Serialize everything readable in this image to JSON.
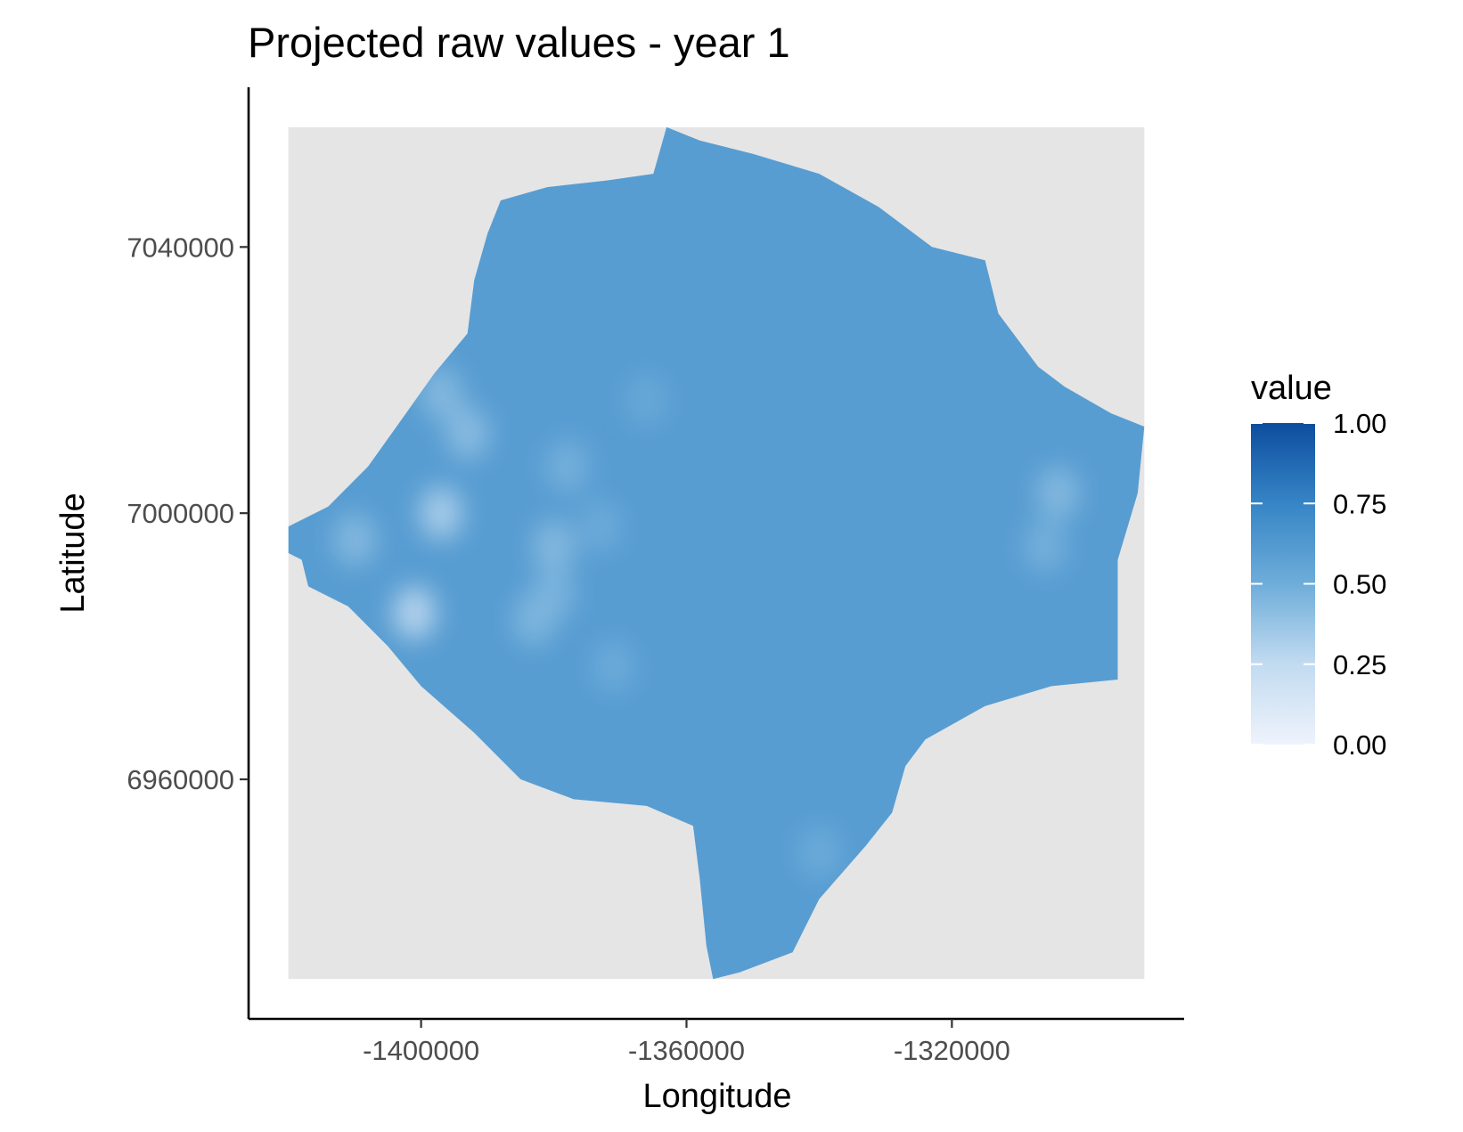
{
  "chart_data": {
    "type": "heatmap",
    "title": "Projected raw values - year 1",
    "xlabel": "Longitude",
    "ylabel": "Latitude",
    "x_ticks": [
      -1400000,
      -1360000,
      -1320000
    ],
    "x_tick_labels": [
      "-1400000",
      "-1360000",
      "-1320000"
    ],
    "y_ticks": [
      6960000,
      7000000,
      7040000
    ],
    "y_tick_labels": [
      "6960000",
      "7000000",
      "7040000"
    ],
    "xlim": [
      -1426000,
      -1285000
    ],
    "ylim": [
      6924000,
      7064000
    ],
    "raster_extent": {
      "x": [
        -1420000,
        -1291000
      ],
      "y": [
        6930000,
        7058000
      ]
    },
    "background_value": "NA",
    "background_color": "#e5e5e5",
    "base_value": 0.6,
    "region_outline": [
      [
        -1363000,
        7058000
      ],
      [
        -1358000,
        7056000
      ],
      [
        -1350000,
        7054000
      ],
      [
        -1340000,
        7051000
      ],
      [
        -1331000,
        7046000
      ],
      [
        -1323000,
        7040000
      ],
      [
        -1315000,
        7038000
      ],
      [
        -1313000,
        7030000
      ],
      [
        -1307000,
        7022000
      ],
      [
        -1303000,
        7019000
      ],
      [
        -1296000,
        7015000
      ],
      [
        -1291000,
        7013000
      ],
      [
        -1292000,
        7003000
      ],
      [
        -1295000,
        6993000
      ],
      [
        -1295000,
        6981000
      ],
      [
        -1295000,
        6975000
      ],
      [
        -1305000,
        6974000
      ],
      [
        -1315000,
        6971000
      ],
      [
        -1324000,
        6966000
      ],
      [
        -1327000,
        6962000
      ],
      [
        -1329000,
        6955000
      ],
      [
        -1333000,
        6950000
      ],
      [
        -1340000,
        6942000
      ],
      [
        -1344000,
        6934000
      ],
      [
        -1352000,
        6931000
      ],
      [
        -1356000,
        6930000
      ],
      [
        -1357000,
        6935000
      ],
      [
        -1358000,
        6945000
      ],
      [
        -1359000,
        6953000
      ],
      [
        -1366000,
        6956000
      ],
      [
        -1377000,
        6957000
      ],
      [
        -1385000,
        6960000
      ],
      [
        -1392000,
        6967000
      ],
      [
        -1400000,
        6974000
      ],
      [
        -1405000,
        6980000
      ],
      [
        -1411000,
        6986000
      ],
      [
        -1417000,
        6989000
      ],
      [
        -1418000,
        6993000
      ],
      [
        -1420000,
        6994000
      ],
      [
        -1420000,
        6998000
      ],
      [
        -1414000,
        7001000
      ],
      [
        -1408000,
        7007000
      ],
      [
        -1403000,
        7014000
      ],
      [
        -1398000,
        7021000
      ],
      [
        -1393000,
        7027000
      ],
      [
        -1392000,
        7035000
      ],
      [
        -1390000,
        7042000
      ],
      [
        -1388000,
        7047000
      ],
      [
        -1381000,
        7049000
      ],
      [
        -1372000,
        7050000
      ],
      [
        -1365000,
        7051000
      ]
    ],
    "value_patches": [
      {
        "x": -1397000,
        "y": 7000000,
        "value": 0.3
      },
      {
        "x": -1401000,
        "y": 6985000,
        "value": 0.25
      },
      {
        "x": -1393000,
        "y": 7012000,
        "value": 0.4
      },
      {
        "x": -1397000,
        "y": 7018000,
        "value": 0.42
      },
      {
        "x": -1410000,
        "y": 6996000,
        "value": 0.42
      },
      {
        "x": -1380000,
        "y": 6995000,
        "value": 0.42
      },
      {
        "x": -1380000,
        "y": 6988000,
        "value": 0.45
      },
      {
        "x": -1383000,
        "y": 6984000,
        "value": 0.44
      },
      {
        "x": -1378000,
        "y": 7007000,
        "value": 0.47
      },
      {
        "x": -1371000,
        "y": 6977000,
        "value": 0.5
      },
      {
        "x": -1373000,
        "y": 6998000,
        "value": 0.5
      },
      {
        "x": -1366000,
        "y": 7017000,
        "value": 0.52
      },
      {
        "x": -1304000,
        "y": 7003000,
        "value": 0.42
      },
      {
        "x": -1306000,
        "y": 6995000,
        "value": 0.47
      },
      {
        "x": -1340000,
        "y": 6949000,
        "value": 0.5
      }
    ],
    "legend": {
      "title": "value",
      "position": "right",
      "breaks": [
        1.0,
        0.75,
        0.5,
        0.25,
        0.0
      ],
      "labels": [
        "1.00",
        "0.75",
        "0.50",
        "0.25",
        "0.00"
      ],
      "range": [
        0,
        1
      ],
      "color_low": "#eef3fc",
      "color_high": "#0d4d9e"
    },
    "grid": false
  }
}
